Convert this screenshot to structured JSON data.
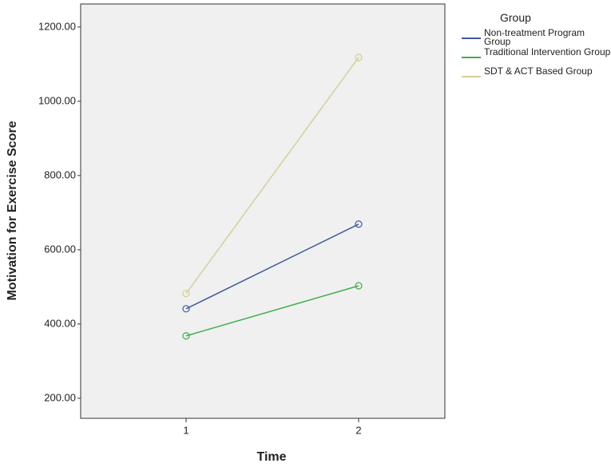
{
  "chart_data": {
    "type": "line",
    "x_label": "Time",
    "y_label": "Motivation for Exercise Score",
    "legend_title": "Group",
    "categories": [
      "1",
      "2"
    ],
    "series": [
      {
        "name": "Non-treatment Program Group",
        "color": "#3e5a9e",
        "values": [
          441,
          669
        ]
      },
      {
        "name": "Traditional Intervention Group",
        "color": "#3fae49",
        "values": [
          368,
          503
        ]
      },
      {
        "name": "SDT & ACT Based Group",
        "color": "#d4cf97",
        "values": [
          482,
          1118
        ]
      }
    ],
    "ylim": [
      146,
      1262
    ],
    "yticks": [
      {
        "value": 200,
        "label": "200.00"
      },
      {
        "value": 400,
        "label": "400.00"
      },
      {
        "value": 600,
        "label": "600.00"
      },
      {
        "value": 800,
        "label": "800.00"
      },
      {
        "value": 1000,
        "label": "1000.00"
      },
      {
        "value": 1200,
        "label": "1200.00"
      }
    ],
    "legend_position": "right"
  }
}
